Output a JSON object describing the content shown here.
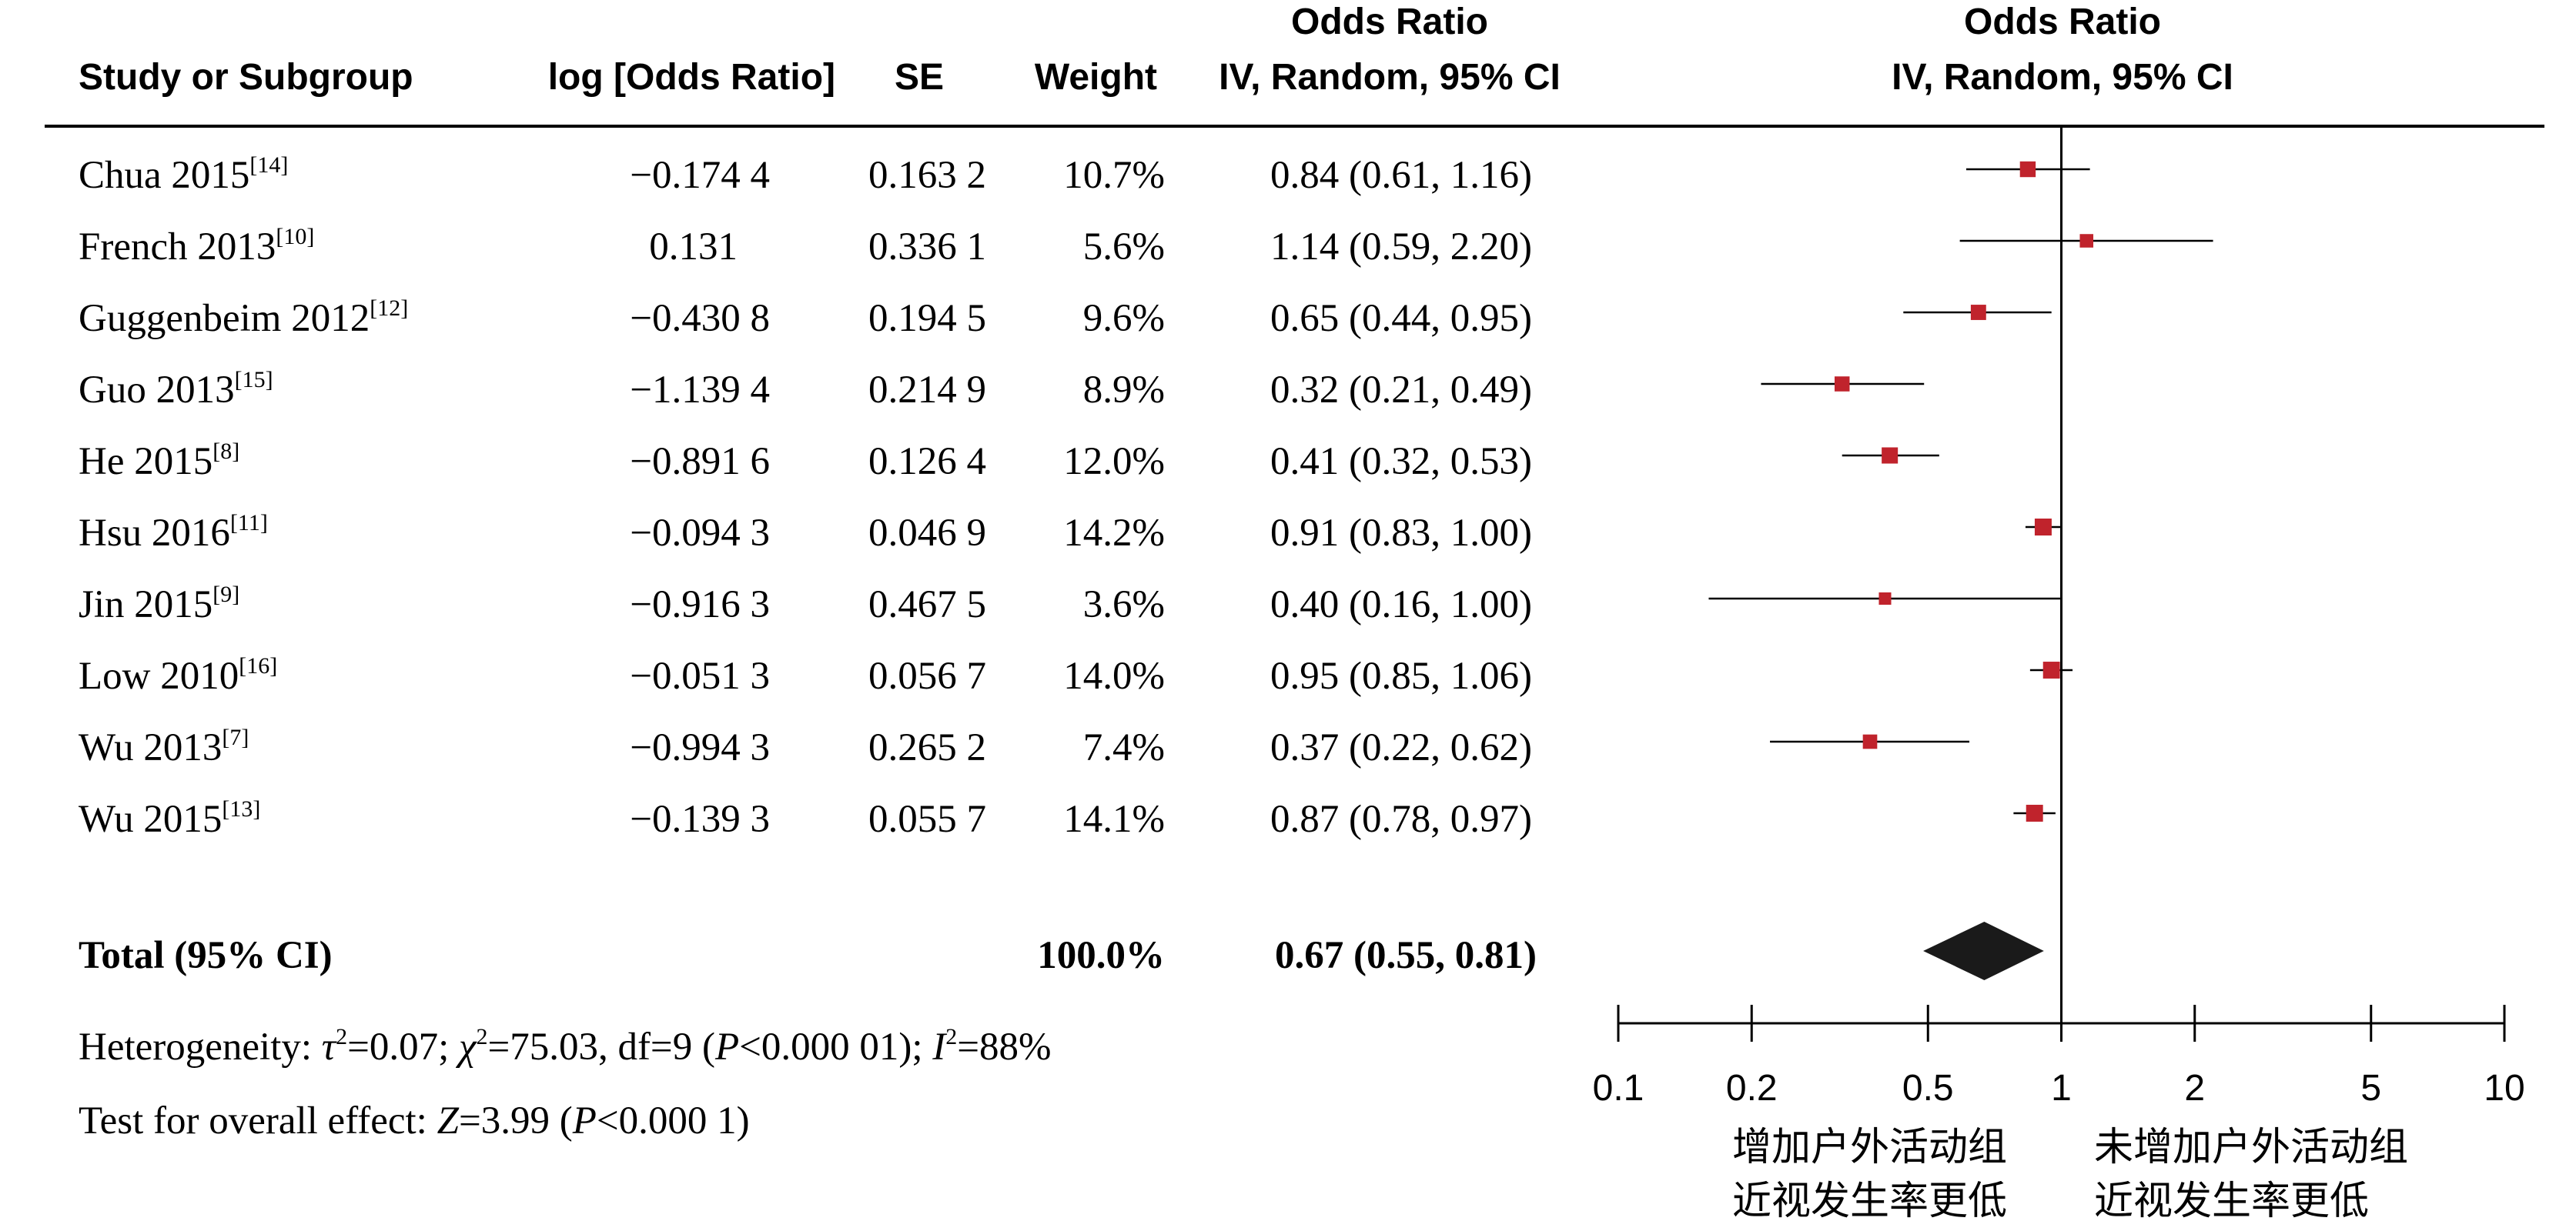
{
  "headers": {
    "study": "Study or Subgroup",
    "log_or": "log [Odds Ratio]",
    "se": "SE",
    "weight": "Weight",
    "or_title": "Odds Ratio",
    "or_method": "IV, Random, 95% CI",
    "plot_title": "Odds Ratio",
    "plot_method": "IV, Random, 95% CI"
  },
  "studies": [
    {
      "name": "Chua 2015",
      "ref": "[14]",
      "log_or": "−0.174 4",
      "se": "0.163 2",
      "weight": "10.7%",
      "ci_text": "0.84 (0.61, 1.16)"
    },
    {
      "name": "French 2013",
      "ref": "[10]",
      "log_or": "0.131",
      "se": "0.336 1",
      "weight": "5.6%",
      "ci_text": "1.14 (0.59, 2.20)"
    },
    {
      "name": "Guggenbeim 2012",
      "ref": "[12]",
      "log_or": "−0.430 8",
      "se": "0.194 5",
      "weight": "9.6%",
      "ci_text": "0.65 (0.44, 0.95)"
    },
    {
      "name": "Guo 2013",
      "ref": "[15]",
      "log_or": "−1.139 4",
      "se": "0.214 9",
      "weight": "8.9%",
      "ci_text": "0.32 (0.21, 0.49)"
    },
    {
      "name": "He 2015",
      "ref": "[8]",
      "log_or": "−0.891 6",
      "se": "0.126 4",
      "weight": "12.0%",
      "ci_text": "0.41 (0.32, 0.53)"
    },
    {
      "name": "Hsu 2016",
      "ref": "[11]",
      "log_or": "−0.094 3",
      "se": "0.046 9",
      "weight": "14.2%",
      "ci_text": "0.91 (0.83, 1.00)"
    },
    {
      "name": "Jin 2015",
      "ref": "[9]",
      "log_or": "−0.916 3",
      "se": "0.467 5",
      "weight": "3.6%",
      "ci_text": "0.40 (0.16, 1.00)"
    },
    {
      "name": "Low 2010",
      "ref": "[16]",
      "log_or": "−0.051 3",
      "se": "0.056 7",
      "weight": "14.0%",
      "ci_text": "0.95 (0.85, 1.06)"
    },
    {
      "name": "Wu 2013",
      "ref": "[7]",
      "log_or": "−0.994 3",
      "se": "0.265 2",
      "weight": "7.4%",
      "ci_text": "0.37 (0.22, 0.62)"
    },
    {
      "name": "Wu 2015",
      "ref": "[13]",
      "log_or": "−0.139 3",
      "se": "0.055 7",
      "weight": "14.1%",
      "ci_text": "0.87 (0.78, 0.97)"
    }
  ],
  "total": {
    "label": "Total (95% CI)",
    "weight": "100.0%",
    "ci_text": "0.67 (0.55, 0.81)"
  },
  "heterogeneity": {
    "prefix": "Heterogeneity: ",
    "tau_sym": "τ",
    "tau_rest": "=0.07; ",
    "chi_sym": "χ",
    "chi_rest": "=75.03, df=9 (",
    "p_sym": "P",
    "p_rest": "<0.000 01); ",
    "i_sym": "I",
    "i_rest": "=88%",
    "sq": "2"
  },
  "overall": {
    "prefix": "Test for overall effect: ",
    "z_sym": "Z",
    "z_rest": "=3.99 (",
    "p_sym": "P",
    "p_rest": "<0.000 1)"
  },
  "favours_left": [
    "增加户外活动组",
    "近视发生率更低"
  ],
  "favours_right": [
    "未增加户外活动组",
    "近视发生率更低"
  ],
  "colors": {
    "marker": "#c0232c",
    "diamond": "#1a1a1a",
    "line": "#000000"
  },
  "chart_data": {
    "type": "forest",
    "x_scale": "log",
    "xlim": [
      0.1,
      10
    ],
    "ticks": [
      0.1,
      0.2,
      0.5,
      1,
      2,
      5,
      10
    ],
    "reference_line": 1,
    "series": [
      {
        "study": "Chua 2015",
        "or": 0.84,
        "lower": 0.61,
        "upper": 1.16,
        "weight": 10.7
      },
      {
        "study": "French 2013",
        "or": 1.14,
        "lower": 0.59,
        "upper": 2.2,
        "weight": 5.6
      },
      {
        "study": "Guggenbeim 2012",
        "or": 0.65,
        "lower": 0.44,
        "upper": 0.95,
        "weight": 9.6
      },
      {
        "study": "Guo 2013",
        "or": 0.32,
        "lower": 0.21,
        "upper": 0.49,
        "weight": 8.9
      },
      {
        "study": "He 2015",
        "or": 0.41,
        "lower": 0.32,
        "upper": 0.53,
        "weight": 12.0
      },
      {
        "study": "Hsu 2016",
        "or": 0.91,
        "lower": 0.83,
        "upper": 1.0,
        "weight": 14.2
      },
      {
        "study": "Jin 2015",
        "or": 0.4,
        "lower": 0.16,
        "upper": 1.0,
        "weight": 3.6
      },
      {
        "study": "Low 2010",
        "or": 0.95,
        "lower": 0.85,
        "upper": 1.06,
        "weight": 14.0
      },
      {
        "study": "Wu 2013",
        "or": 0.37,
        "lower": 0.22,
        "upper": 0.62,
        "weight": 7.4
      },
      {
        "study": "Wu 2015",
        "or": 0.87,
        "lower": 0.78,
        "upper": 0.97,
        "weight": 14.1
      }
    ],
    "pooled": {
      "or": 0.67,
      "lower": 0.55,
      "upper": 0.81,
      "weight": 100.0
    }
  }
}
